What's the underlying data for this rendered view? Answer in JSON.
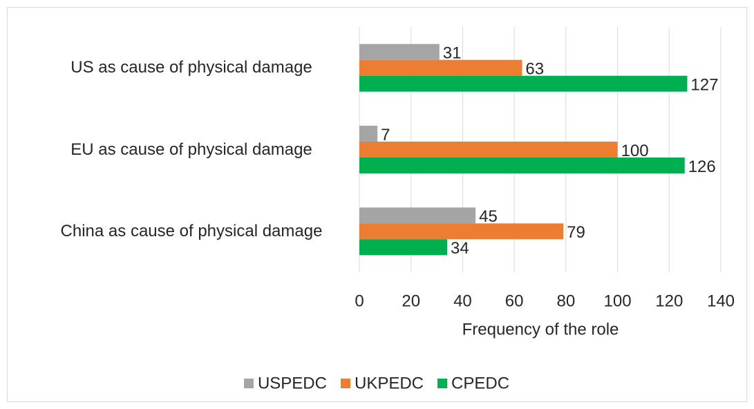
{
  "chart_data": {
    "type": "barh",
    "categories": [
      "US as cause of physical damage",
      "EU as cause of physical damage",
      "China as cause of physical damage"
    ],
    "series": [
      {
        "name": "USPEDC",
        "color": "#a5a5a5",
        "values": [
          31,
          7,
          45
        ]
      },
      {
        "name": "UKPEDC",
        "color": "#ed7d31",
        "values": [
          63,
          100,
          79
        ]
      },
      {
        "name": "CPEDC",
        "color": "#00b050",
        "values": [
          127,
          126,
          34
        ]
      }
    ],
    "xlabel": "Frequency of the role",
    "xlim": [
      0,
      140
    ],
    "xticks": [
      0,
      20,
      40,
      60,
      80,
      100,
      120,
      140
    ],
    "grid": true,
    "legend": "bottom"
  }
}
